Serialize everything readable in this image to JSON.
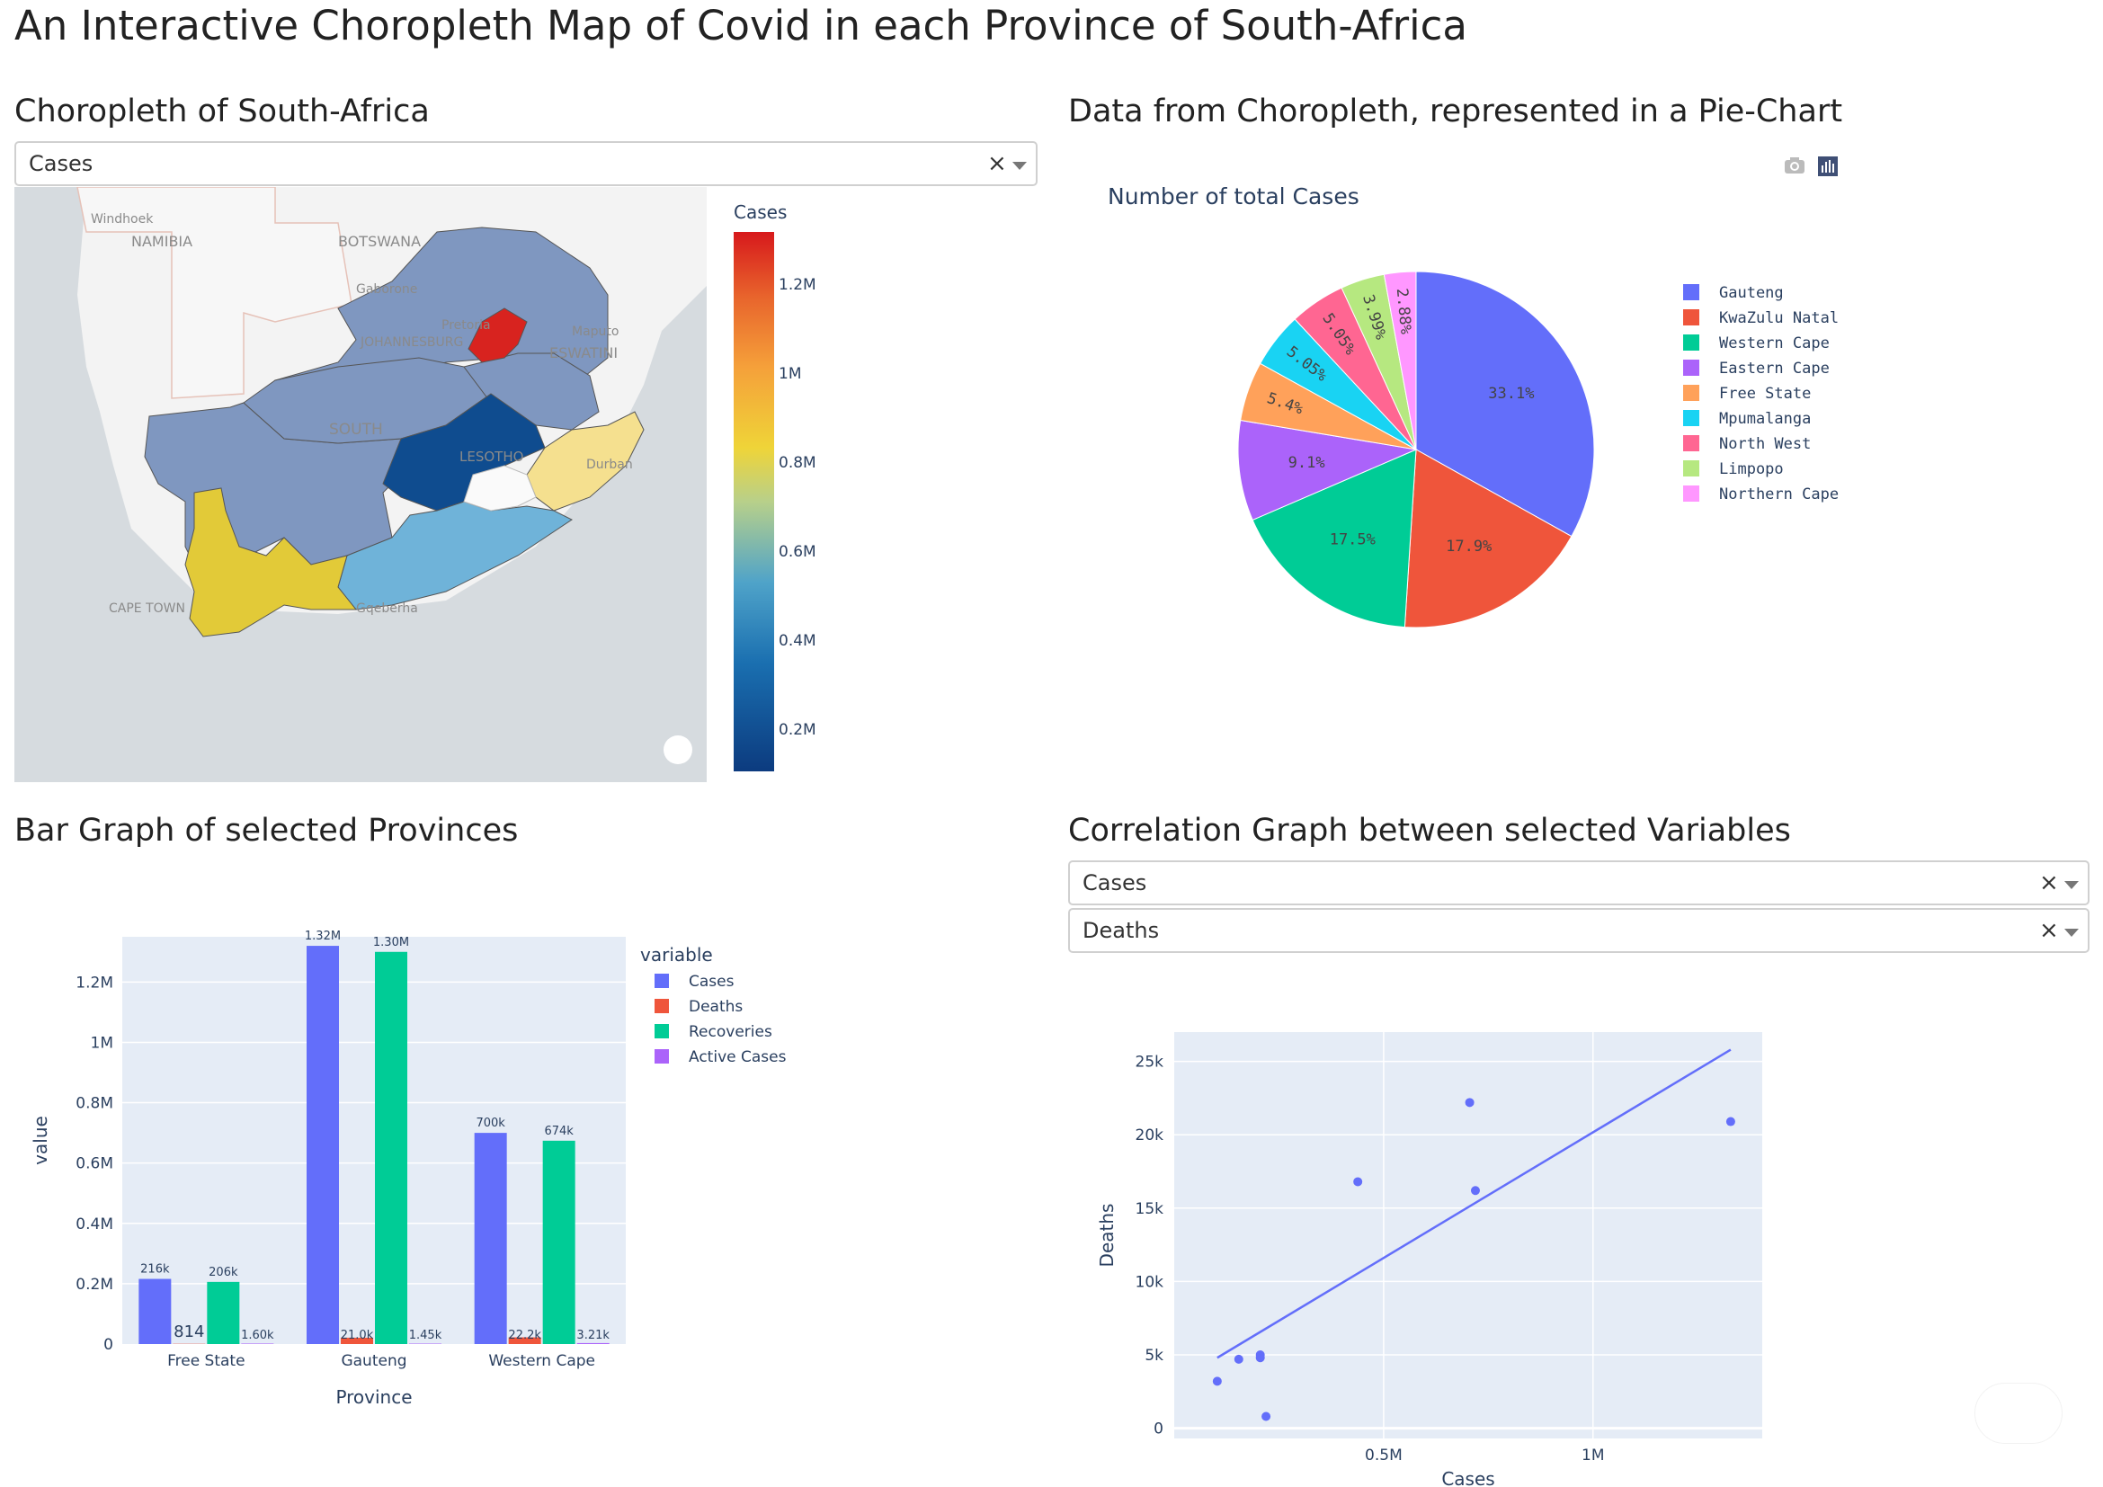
{
  "page_title": "An Interactive Choropleth Map of Covid in each Province of South-Africa",
  "map_section": {
    "title": "Choropleth of South-Africa",
    "dropdown_value": "Cases",
    "clear_glyph": "×",
    "colorbar_title": "Cases",
    "colorbar_ticks": [
      "1.2M",
      "1M",
      "0.8M",
      "0.6M",
      "0.4M",
      "0.2M"
    ],
    "place_labels": [
      "Windhoek",
      "NAMIBIA",
      "BOTSWANA",
      "Gaborone",
      "Pretoria",
      "JOHANNESBURG",
      "Maputo",
      "ESWATINI",
      "SOUTH",
      "LESOTHO",
      "Durban",
      "CAPE TOWN",
      "Gqeberha"
    ]
  },
  "pie_section": {
    "title": "Data from Choropleth, represented in a Pie-Chart",
    "modebar_icons": [
      "camera-icon",
      "plotly-bar-icon"
    ],
    "chart_title": "Number of total Cases"
  },
  "bar_section": {
    "title": "Bar Graph of selected Provinces"
  },
  "corr_section": {
    "title": "Correlation Graph between selected Variables",
    "dropdown_x": "Cases",
    "dropdown_y": "Deaths",
    "clear_glyph": "×"
  },
  "chart_data": [
    {
      "type": "pie",
      "title": "Number of total Cases",
      "categories": [
        "Gauteng",
        "KwaZulu Natal",
        "Western Cape",
        "Eastern Cape",
        "Free State",
        "Mpumalanga",
        "North West",
        "Limpopo",
        "Northern Cape"
      ],
      "values": [
        33.1,
        17.9,
        17.5,
        9.1,
        5.4,
        5.05,
        5.05,
        3.99,
        2.88
      ],
      "labels": [
        "33.1%",
        "17.9%",
        "17.5%",
        "9.1%",
        "5.4%",
        "5.05%",
        "5.05%",
        "3.99%",
        "2.88%"
      ],
      "colors": [
        "#636efa",
        "#EF553B",
        "#00cc96",
        "#ab63fa",
        "#FFA15A",
        "#19d3f3",
        "#FF6692",
        "#B6E880",
        "#FF97FF"
      ],
      "legend_position": "right"
    },
    {
      "type": "bar",
      "categories": [
        "Free State",
        "Gauteng",
        "Western Cape"
      ],
      "series": [
        {
          "name": "Cases",
          "color": "#636efa",
          "values": [
            216000,
            1320000,
            700000
          ],
          "labels": [
            "216k",
            "1.32M",
            "700k"
          ]
        },
        {
          "name": "Deaths",
          "color": "#EF553B",
          "values": [
            814,
            21000,
            22200
          ],
          "labels": [
            "814",
            "21.0k",
            "22.2k"
          ]
        },
        {
          "name": "Recoveries",
          "color": "#00cc96",
          "values": [
            206000,
            1300000,
            674000
          ],
          "labels": [
            "206k",
            "1.30M",
            "674k"
          ]
        },
        {
          "name": "Active Cases",
          "color": "#ab63fa",
          "values": [
            1600,
            1450,
            3210
          ],
          "labels": [
            "1.60k",
            "1.45k",
            "3.21k"
          ]
        }
      ],
      "legend_title": "variable",
      "xlabel": "Province",
      "ylabel": "value",
      "yticks": [
        {
          "v": 0,
          "t": "0"
        },
        {
          "v": 200000,
          "t": "0.2M"
        },
        {
          "v": 400000,
          "t": "0.4M"
        },
        {
          "v": 600000,
          "t": "0.6M"
        },
        {
          "v": 800000,
          "t": "0.8M"
        },
        {
          "v": 1000000,
          "t": "1M"
        },
        {
          "v": 1200000,
          "t": "1.2M"
        }
      ],
      "ylim": [
        0,
        1350000
      ],
      "grid": true
    },
    {
      "type": "scatter",
      "xlabel": "Cases",
      "ylabel": "Deaths",
      "points": [
        {
          "x": 150000,
          "y": 3200
        },
        {
          "x": 225000,
          "y": 4700
        },
        {
          "x": 300000,
          "y": 5000
        },
        {
          "x": 300000,
          "y": 4800
        },
        {
          "x": 320000,
          "y": 800
        },
        {
          "x": 640000,
          "y": 16800
        },
        {
          "x": 1030000,
          "y": 22200
        },
        {
          "x": 1050000,
          "y": 16200
        },
        {
          "x": 1940000,
          "y": 20900
        }
      ],
      "trendline": [
        {
          "x": 150000,
          "y": 4800
        },
        {
          "x": 1940000,
          "y": 25800
        }
      ],
      "xticks": [
        {
          "v": 730000,
          "t": "0.5M"
        },
        {
          "v": 1460000,
          "t": "1M"
        }
      ],
      "yticks": [
        {
          "v": 0,
          "t": "0"
        },
        {
          "v": 5000,
          "t": "5k"
        },
        {
          "v": 10000,
          "t": "10k"
        },
        {
          "v": 15000,
          "t": "15k"
        },
        {
          "v": 20000,
          "t": "20k"
        },
        {
          "v": 25000,
          "t": "25k"
        }
      ],
      "xlim": [
        0,
        2050000
      ],
      "ylim": [
        -700,
        27000
      ],
      "color": "#636efa"
    }
  ]
}
